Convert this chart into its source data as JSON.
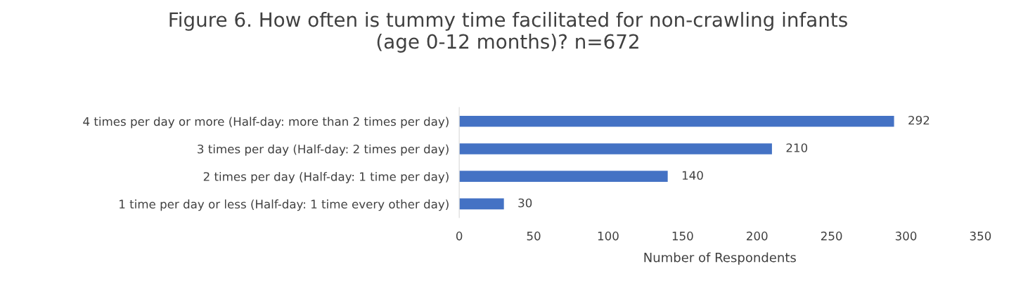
{
  "chart_data": {
    "type": "bar",
    "orientation": "horizontal",
    "title": "Figure 6. How often is tummy time facilitated for non-crawling infants\n(age 0-12 months)? n=672",
    "xlabel": "Number of Respondents",
    "categories": [
      "4 times per day or more (Half-day: more than 2 times per day)",
      "3 times per day (Half-day: 2 times per day)",
      "2 times per day (Half-day: 1 time per day)",
      "1 time per day or less (Half-day: 1 time every other day)"
    ],
    "values": [
      292,
      210,
      140,
      30
    ],
    "color": "#4472c4",
    "data_labels": true,
    "xlim": [
      0,
      350
    ],
    "xticks": [
      0,
      50,
      100,
      150,
      200,
      250,
      300,
      350
    ],
    "grid": false,
    "legend": false
  }
}
